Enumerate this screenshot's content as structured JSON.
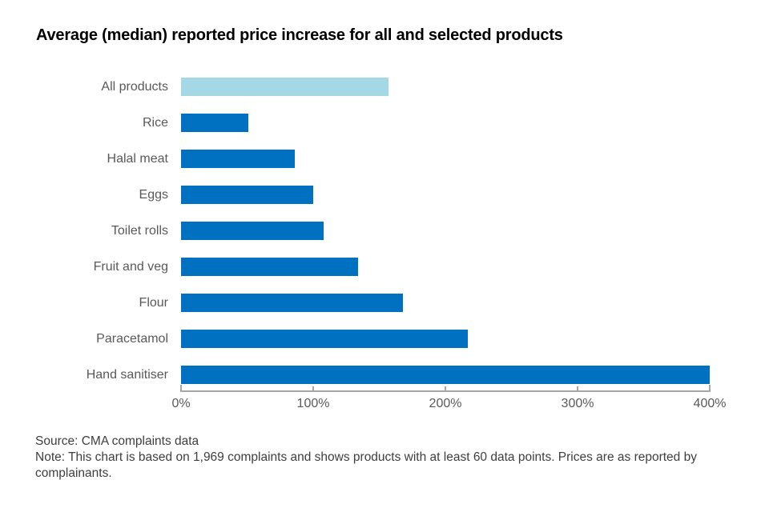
{
  "title": "Average (median) reported price increase for all and selected products",
  "colors": {
    "highlight_bar": "#a5d8e5",
    "bar": "#0070c0",
    "axis": "#a6a6a6",
    "category_label": "#595959",
    "note_text": "#3e3e3e"
  },
  "chart_data": {
    "type": "bar",
    "orientation": "horizontal",
    "title": "Average (median) reported price increase for all and selected products",
    "categories": [
      "All products",
      "Rice",
      "Halal meat",
      "Eggs",
      "Toilet rolls",
      "Fruit and veg",
      "Flour",
      "Paracetamol",
      "Hand sanitiser"
    ],
    "values": [
      157,
      51,
      86,
      100,
      108,
      134,
      168,
      217,
      400
    ],
    "unit": "%",
    "highlight_index": 0,
    "xlim": [
      0,
      400
    ],
    "x_tick_values": [
      0,
      100,
      200,
      300,
      400
    ],
    "x_tick_labels": [
      "0%",
      "100%",
      "200%",
      "300%",
      "400%"
    ],
    "grid": false,
    "legend": false
  },
  "footnotes": {
    "source": "Source: CMA complaints data",
    "note": "Note: This chart is based on 1,969 complaints and shows products with at least 60 data points. Prices are as reported by complainants."
  }
}
